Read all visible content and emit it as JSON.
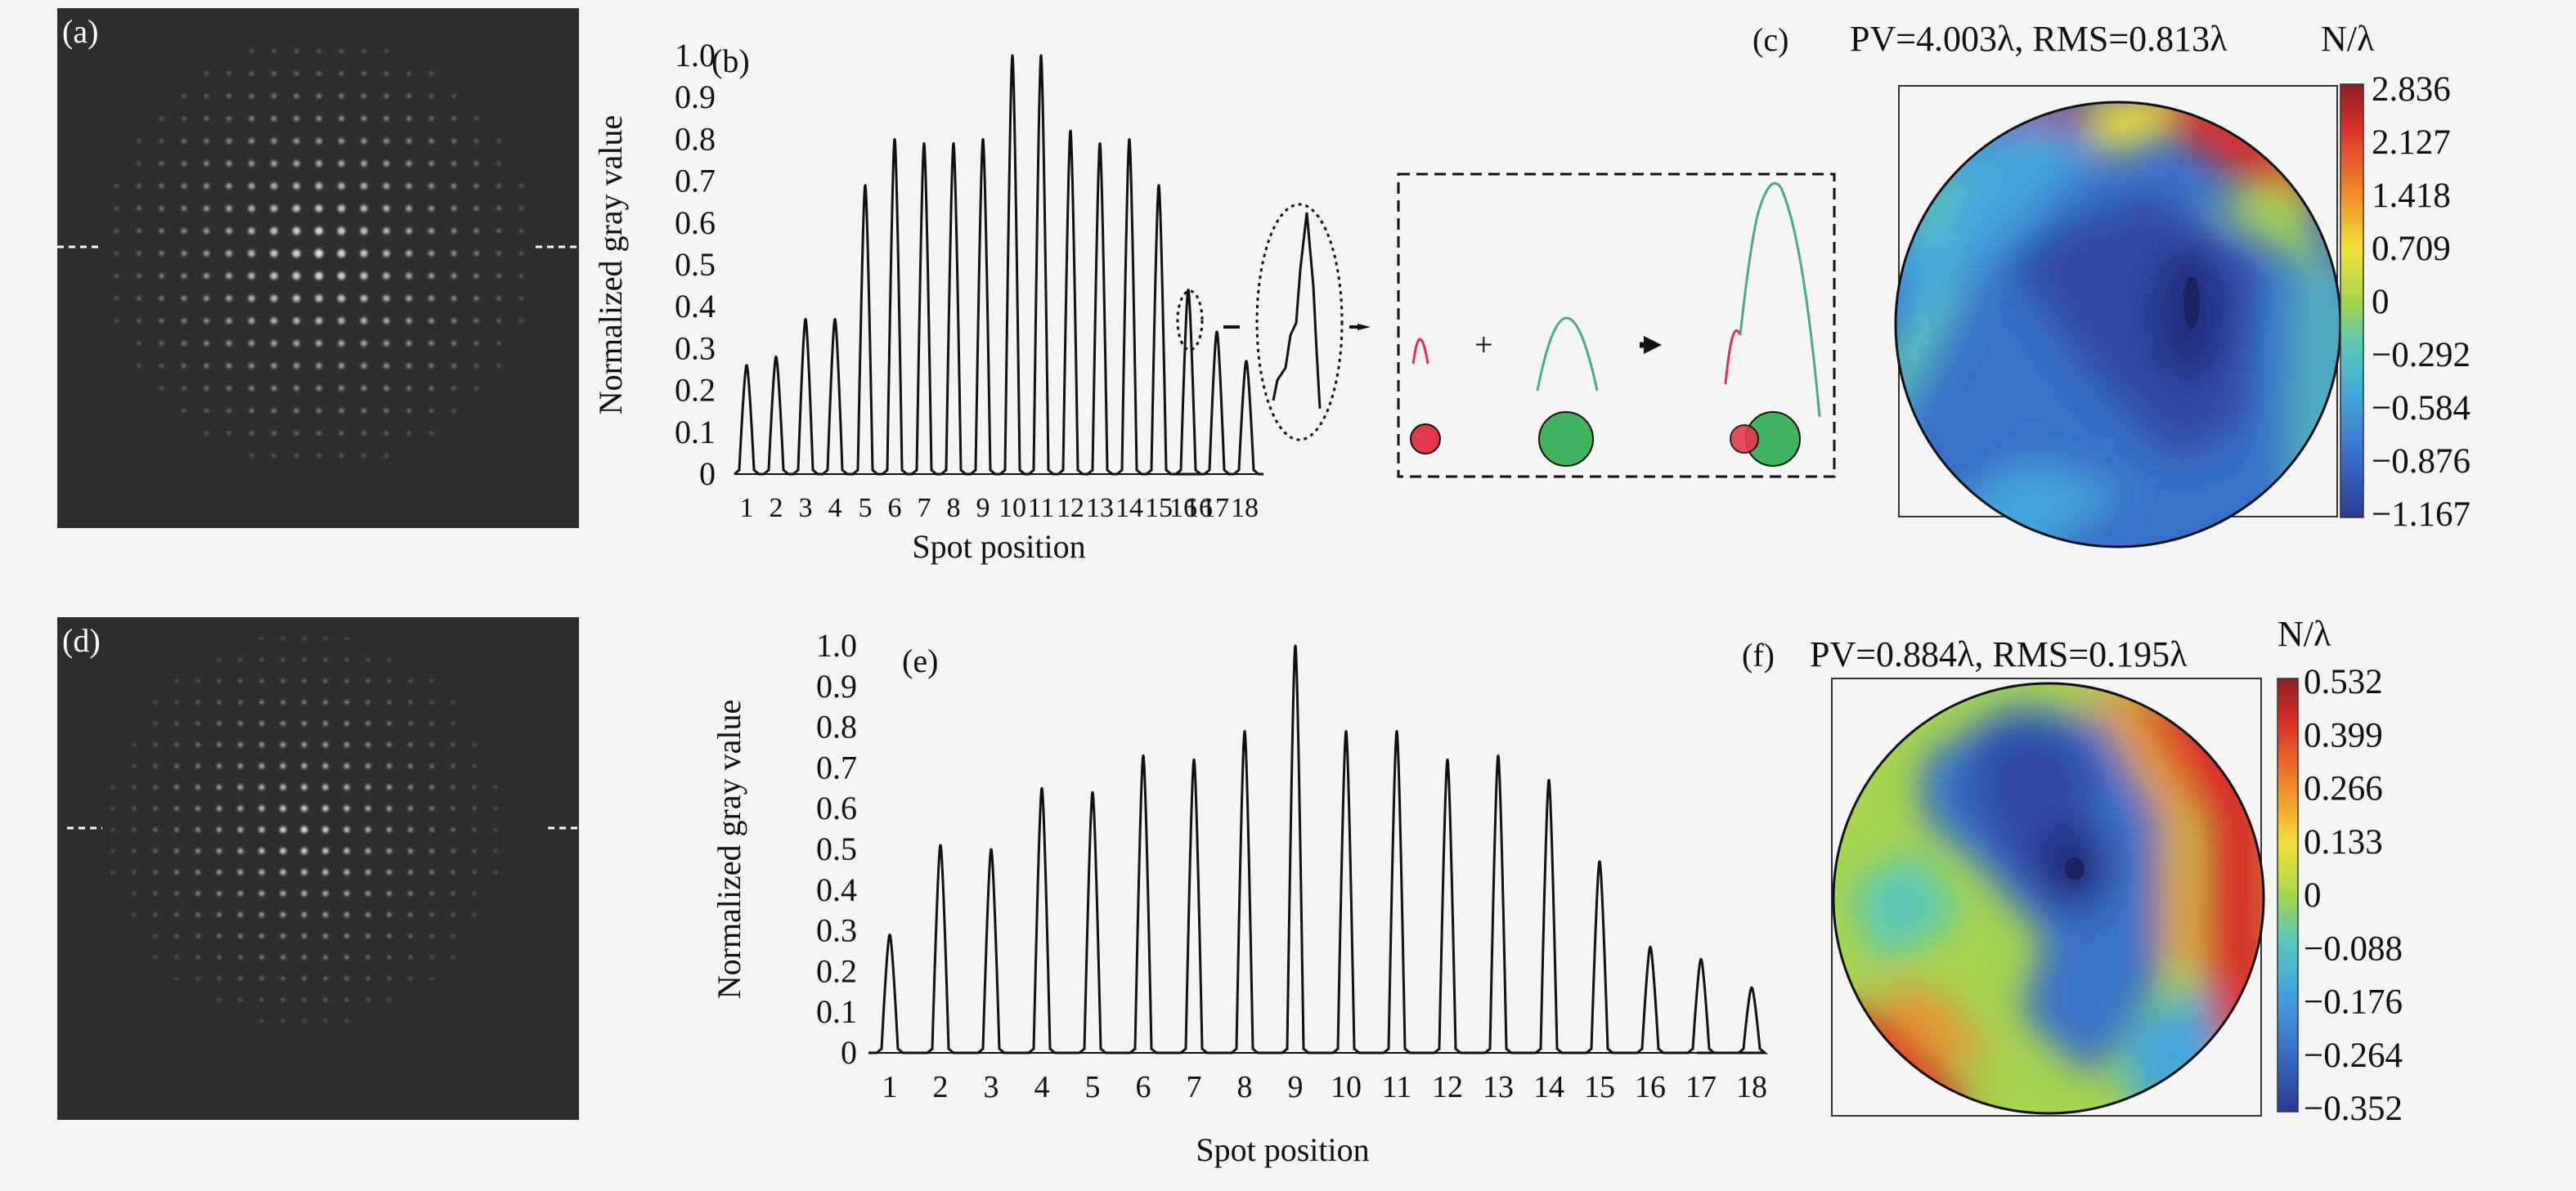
{
  "panels": {
    "a": "(a)",
    "b": "(b)",
    "c": "(c)",
    "d": "(d)",
    "e": "(e)",
    "f": "(f)"
  },
  "plus_sign": "+",
  "colors": {
    "background": "#f4f4f4",
    "spot_panel": "#2e2e2e",
    "spot": "#e8e8e8",
    "curve": "#111111",
    "small_spot": "#e23a4c",
    "large_spot": "#43b25f",
    "colormap": [
      "#2a3a8f",
      "#3a6fc8",
      "#44a6dc",
      "#5cc7b8",
      "#a6d64f",
      "#f2df3a",
      "#f08a2c",
      "#d8302a",
      "#8a1d22"
    ]
  },
  "chart_data": [
    {
      "type": "line",
      "panel": "(b)",
      "xlabel": "Spot position",
      "ylabel": "Normalized gray value",
      "ylim": [
        0,
        1.0
      ],
      "yticks": [
        "0",
        "0.1",
        "0.2",
        "0.3",
        "0.4",
        "0.5",
        "0.6",
        "0.7",
        "0.8",
        "0.9",
        "1.0"
      ],
      "categories": [
        "1",
        "2",
        "3",
        "4",
        "5",
        "6",
        "7",
        "8",
        "9",
        "10",
        "11",
        "12",
        "13",
        "14",
        "15",
        "16",
        "16",
        "17",
        "18"
      ],
      "values": [
        0.26,
        0.28,
        0.37,
        0.37,
        0.69,
        0.8,
        0.79,
        0.79,
        0.8,
        1.0,
        1.0,
        0.82,
        0.79,
        0.8,
        0.69,
        0.44,
        0.44,
        0.34,
        0.27
      ]
    },
    {
      "type": "line",
      "panel": "(e)",
      "xlabel": "Spot position",
      "ylabel": "Normalized gray value",
      "ylim": [
        0,
        1.0
      ],
      "yticks": [
        "0",
        "0.1",
        "0.2",
        "0.3",
        "0.4",
        "0.5",
        "0.6",
        "0.7",
        "0.8",
        "0.9",
        "1.0"
      ],
      "categories": [
        "1",
        "2",
        "3",
        "4",
        "5",
        "6",
        "7",
        "8",
        "9",
        "10",
        "11",
        "12",
        "13",
        "14",
        "15",
        "16",
        "17",
        "18"
      ],
      "values": [
        0.29,
        0.51,
        0.5,
        0.65,
        0.64,
        0.73,
        0.72,
        0.79,
        1.0,
        0.79,
        0.79,
        0.72,
        0.73,
        0.67,
        0.47,
        0.26,
        0.23,
        0.16
      ]
    },
    {
      "type": "heatmap",
      "panel": "(c)",
      "title": "PV=4.003λ, RMS=0.813λ",
      "colorbar_label": "N/λ",
      "colorbar_ticks": [
        "2.836",
        "2.127",
        "1.418",
        "0.709",
        "0",
        "−0.292",
        "−0.584",
        "−0.876",
        "−1.167"
      ]
    },
    {
      "type": "heatmap",
      "panel": "(f)",
      "title": "PV=0.884λ, RMS=0.195λ",
      "colorbar_label": "N/λ",
      "colorbar_ticks": [
        "0.532",
        "0.399",
        "0.266",
        "0.133",
        "0",
        "−0.088",
        "−0.176",
        "−0.264",
        "−0.352"
      ]
    }
  ]
}
